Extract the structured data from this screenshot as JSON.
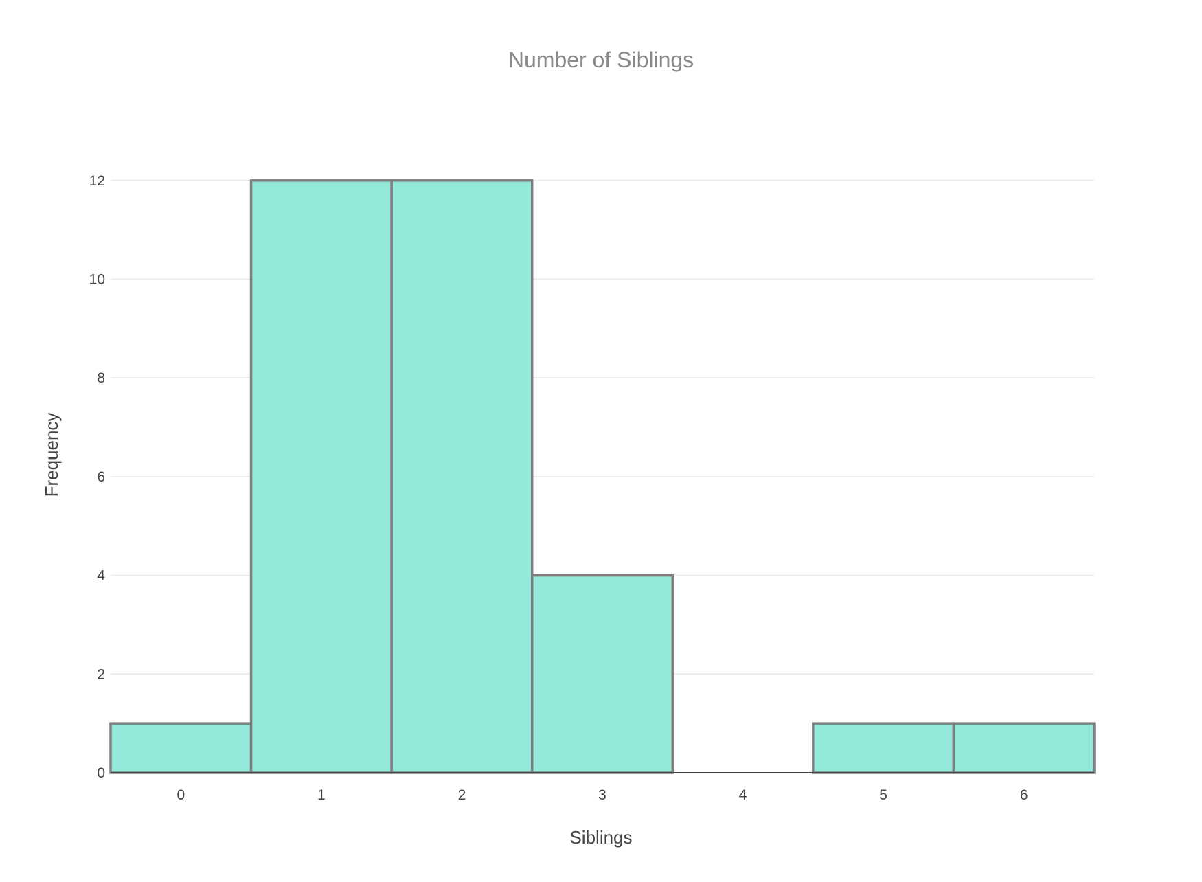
{
  "chart_data": {
    "type": "bar",
    "title": "Number of Siblings",
    "xlabel": "Siblings",
    "ylabel": "Frequency",
    "categories": [
      "0",
      "1",
      "2",
      "3",
      "4",
      "5",
      "6"
    ],
    "values": [
      1,
      12,
      12,
      4,
      0,
      1,
      1
    ],
    "x": [
      0,
      1,
      2,
      3,
      4,
      5,
      6
    ],
    "xlim": [
      -0.5,
      6.5
    ],
    "ylim": [
      0,
      13.5
    ],
    "y_ticks": [
      0,
      2,
      4,
      6,
      8,
      10,
      12
    ],
    "grid": true,
    "legend": "none",
    "colors": {
      "bar_fill": "#94eada",
      "bar_outline": "#7f7f7f",
      "grid": "#e8e8e8",
      "title": "#8a8a8a",
      "text": "#444444"
    }
  }
}
